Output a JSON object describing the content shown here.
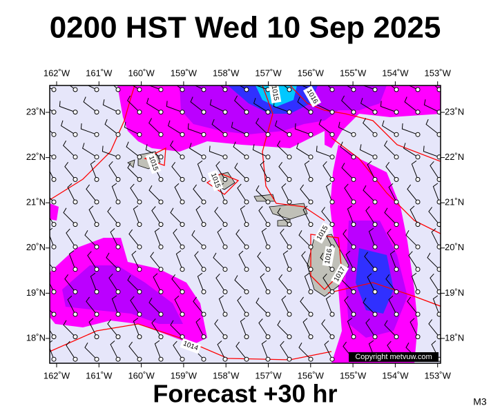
{
  "title": "0200 HST Wed 10 Sep 2025",
  "footer": "Forecast +30 hr",
  "model": "M3",
  "copyright": "Copyright metvuw.com",
  "longitude_labels": [
    "162˚W",
    "161˚W",
    "160˚W",
    "159˚W",
    "158˚W",
    "157˚W",
    "156˚W",
    "155˚W",
    "154˚W",
    "153˚W"
  ],
  "latitude_labels": [
    "23˚N",
    "22˚N",
    "21˚N",
    "20˚N",
    "19˚N",
    "18˚N"
  ],
  "isobar_labels": [
    "1015",
    "1016",
    "1015",
    "1015",
    "1015",
    "1016",
    "1017",
    "1014"
  ]
}
